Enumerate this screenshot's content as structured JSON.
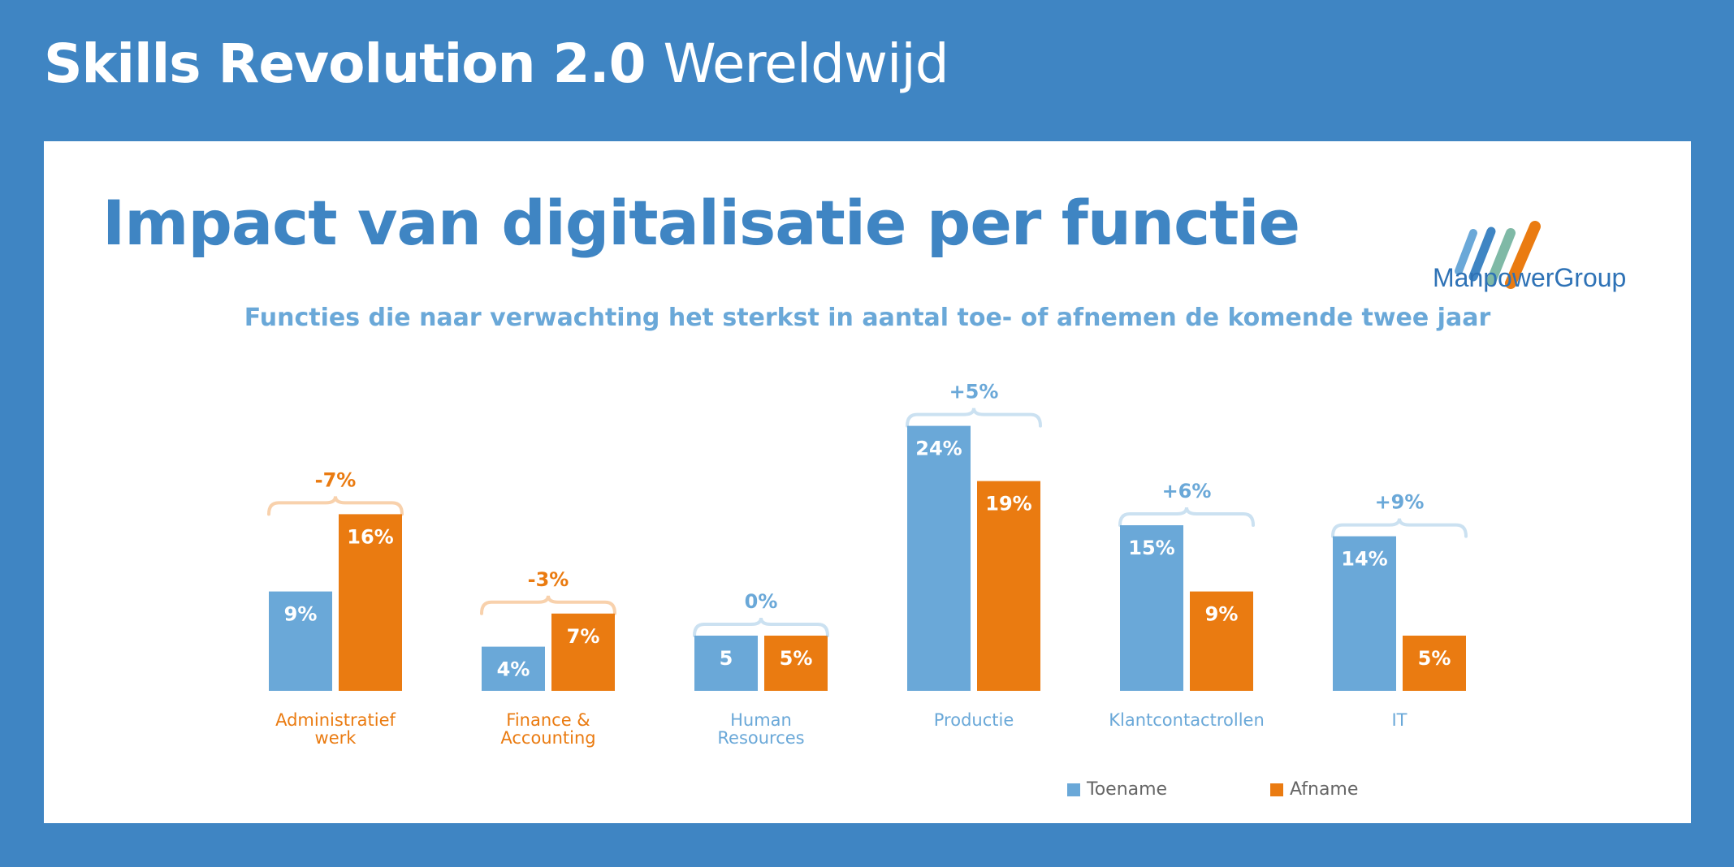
{
  "header": {
    "title_bold": "Skills Revolution 2.0",
    "title_light": "Wereldwijd"
  },
  "title": "Impact van digitalisatie per functie",
  "logo": {
    "name": "ManpowerGroup",
    "icon": "manpower-stripes-icon"
  },
  "chart_data": {
    "type": "bar",
    "title": "",
    "subtitle": "Functies die naar verwachting het sterkst in aantal toe- of afnemen de komende twee jaar",
    "categories": [
      "Administratief\nwerk",
      "Finance &\nAccounting",
      "Human\nResources",
      "Productie",
      "Klantcontactrollen",
      "IT"
    ],
    "category_colors": [
      "#ea7b11",
      "#ea7b11",
      "#6aa8d8",
      "#6aa8d8",
      "#6aa8d8",
      "#6aa8d8"
    ],
    "series": [
      {
        "name": "Toename",
        "color": "#6aa8d8",
        "values": [
          9,
          4,
          5,
          24,
          15,
          14
        ],
        "labels": [
          "9%",
          "4%",
          "5",
          "24%",
          "15%",
          "14%"
        ]
      },
      {
        "name": "Afname",
        "color": "#ea7b11",
        "values": [
          16,
          7,
          5,
          19,
          9,
          5
        ],
        "labels": [
          "16%",
          "7%",
          "5%",
          "19%",
          "9%",
          "5%"
        ]
      }
    ],
    "net_change": [
      "-7%",
      "-3%",
      "0%",
      "+5%",
      "+6%",
      "+9%"
    ],
    "net_change_colors": [
      "#ea7b11",
      "#ea7b11",
      "#6aa8d8",
      "#6aa8d8",
      "#6aa8d8",
      "#6aa8d8"
    ],
    "ylim": [
      0,
      25
    ],
    "grid": false,
    "legend_position": "bottom-right"
  },
  "colors": {
    "background": "#3f85c3",
    "accent_blue": "#6aa8d8",
    "accent_orange": "#ea7b11",
    "title_blue": "#3f85c3"
  }
}
